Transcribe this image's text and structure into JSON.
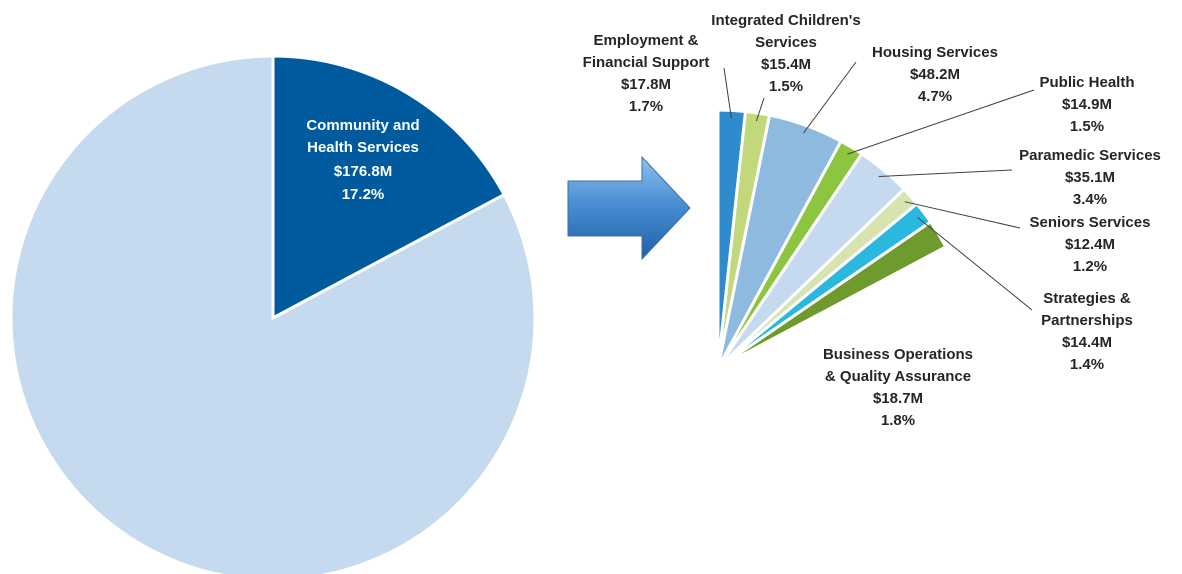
{
  "chart_data": [
    {
      "type": "pie",
      "slices": [
        {
          "label": "Community and Health Services",
          "value_label": "$176.8M",
          "percent_label": "17.2%",
          "percent": 17.2,
          "value": 176.8,
          "color": "#005a9e"
        },
        {
          "label": "",
          "value_label": "",
          "percent_label": "",
          "percent": 82.8,
          "value": null,
          "color": "#c5d9ef"
        }
      ]
    },
    {
      "type": "pie",
      "slices": [
        {
          "label_lines": [
            "Employment &",
            "Financial Support"
          ],
          "value_label": "$17.8M",
          "percent_label": "1.7%",
          "value": 17.8,
          "percent": 1.7,
          "color": "#2e8ccd"
        },
        {
          "label_lines": [
            "Integrated Children's",
            "Services"
          ],
          "value_label": "$15.4M",
          "percent_label": "1.5%",
          "value": 15.4,
          "percent": 1.5,
          "color": "#c2d87a"
        },
        {
          "label_lines": [
            "Housing Services"
          ],
          "value_label": "$48.2M",
          "percent_label": "4.7%",
          "value": 48.2,
          "percent": 4.7,
          "color": "#8fbae0"
        },
        {
          "label_lines": [
            "Public Health"
          ],
          "value_label": "$14.9M",
          "percent_label": "1.5%",
          "value": 14.9,
          "percent": 1.5,
          "color": "#8cc540"
        },
        {
          "label_lines": [
            "Paramedic Services"
          ],
          "value_label": "$35.1M",
          "percent_label": "3.4%",
          "value": 35.1,
          "percent": 3.4,
          "color": "#c5d9ef"
        },
        {
          "label_lines": [
            "Seniors Services"
          ],
          "value_label": "$12.4M",
          "percent_label": "1.2%",
          "value": 12.4,
          "percent": 1.2,
          "color": "#d7e4b0"
        },
        {
          "label_lines": [
            "Strategies &",
            "Partnerships"
          ],
          "value_label": "$14.4M",
          "percent_label": "1.4%",
          "value": 14.4,
          "percent": 1.4,
          "color": "#2bb8de"
        },
        {
          "label_lines": [
            "Business Operations",
            "& Quality Assurance"
          ],
          "value_label": "$18.7M",
          "percent_label": "1.8%",
          "value": 18.7,
          "percent": 1.8,
          "color": "#6f9a2e"
        }
      ]
    }
  ]
}
